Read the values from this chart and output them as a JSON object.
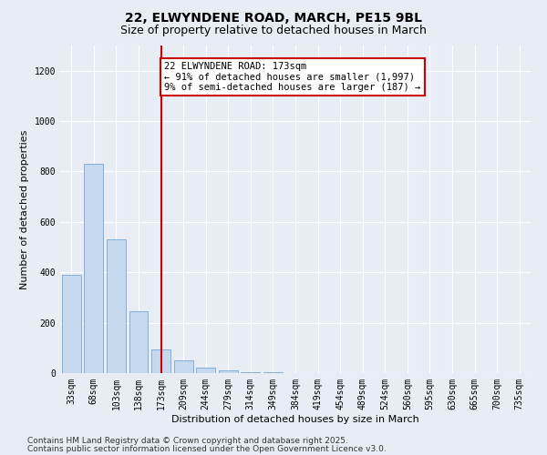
{
  "title_line1": "22, ELWYNDENE ROAD, MARCH, PE15 9BL",
  "title_line2": "Size of property relative to detached houses in March",
  "xlabel": "Distribution of detached houses by size in March",
  "ylabel": "Number of detached properties",
  "categories": [
    "33sqm",
    "68sqm",
    "103sqm",
    "138sqm",
    "173sqm",
    "209sqm",
    "244sqm",
    "279sqm",
    "314sqm",
    "349sqm",
    "384sqm",
    "419sqm",
    "454sqm",
    "489sqm",
    "524sqm",
    "560sqm",
    "595sqm",
    "630sqm",
    "665sqm",
    "700sqm",
    "735sqm"
  ],
  "values": [
    390,
    830,
    530,
    245,
    95,
    50,
    20,
    10,
    5,
    2,
    1,
    1,
    0,
    0,
    0,
    0,
    1,
    0,
    0,
    0,
    0
  ],
  "bar_color": "#c5d8ed",
  "bar_edge_color": "#6699cc",
  "vline_x_index": 4,
  "vline_color": "#cc0000",
  "annotation_text": "22 ELWYNDENE ROAD: 173sqm\n← 91% of detached houses are smaller (1,997)\n9% of semi-detached houses are larger (187) →",
  "annotation_box_color": "#ffffff",
  "annotation_box_edge": "#cc0000",
  "ylim": [
    0,
    1300
  ],
  "yticks": [
    0,
    200,
    400,
    600,
    800,
    1000,
    1200
  ],
  "bg_color": "#e8edf5",
  "plot_bg_color": "#e8edf5",
  "footer_line1": "Contains HM Land Registry data © Crown copyright and database right 2025.",
  "footer_line2": "Contains public sector information licensed under the Open Government Licence v3.0.",
  "title_fontsize": 10,
  "subtitle_fontsize": 9,
  "axis_label_fontsize": 8,
  "tick_fontsize": 7,
  "annotation_fontsize": 7.5,
  "footer_fontsize": 6.5
}
